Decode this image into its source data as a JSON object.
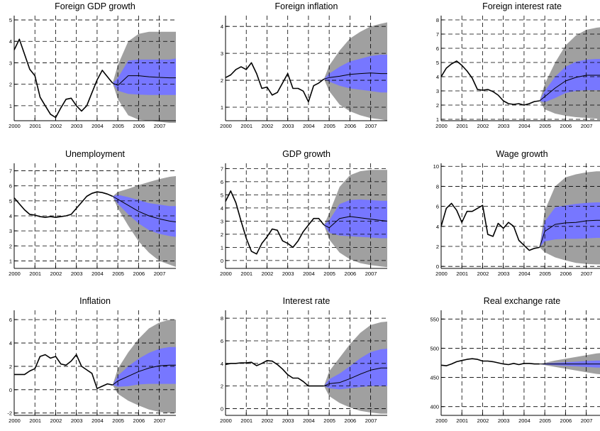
{
  "colors": {
    "outer_band": "#a0a0a0",
    "inner_band": "#7777ff",
    "line": "#000000",
    "grid": "#000000"
  },
  "chart_data": [
    {
      "type": "area",
      "title": "Foreign GDP growth",
      "grid": true,
      "x_ticks": [
        2000,
        2001,
        2002,
        2003,
        2004,
        2005,
        2006,
        2007
      ],
      "xlim": [
        2000,
        2007.8
      ],
      "y_ticks": [
        1,
        2,
        3,
        4,
        5
      ],
      "ylim": [
        0.3,
        5.2
      ],
      "history": {
        "x": [
          2000,
          2000.25,
          2000.5,
          2000.75,
          2001,
          2001.25,
          2001.5,
          2001.75,
          2002,
          2002.25,
          2002.5,
          2002.75,
          2003,
          2003.25,
          2003.5,
          2003.75,
          2004,
          2004.25,
          2004.5,
          2004.75
        ],
        "y": [
          3.6,
          4.1,
          3.4,
          2.7,
          2.4,
          1.4,
          1.0,
          0.6,
          0.45,
          0.9,
          1.3,
          1.35,
          1.0,
          0.75,
          1.0,
          1.6,
          2.2,
          2.65,
          2.35,
          2.05
        ]
      },
      "forecast_x": [
        2004.75,
        2005,
        2005.5,
        2006,
        2006.5,
        2007,
        2007.5,
        2007.8
      ],
      "forecast_mean": [
        2.05,
        1.95,
        2.4,
        2.4,
        2.35,
        2.32,
        2.3,
        2.3
      ],
      "band_inner": {
        "lower": [
          2.05,
          1.7,
          1.55,
          1.52,
          1.5,
          1.5,
          1.5,
          1.5
        ],
        "upper": [
          2.05,
          2.3,
          3.1,
          3.15,
          3.15,
          3.15,
          3.15,
          3.2
        ]
      },
      "band_outer": {
        "lower": [
          2.05,
          1.3,
          0.55,
          0.35,
          0.3,
          0.25,
          0.2,
          0.2
        ],
        "upper": [
          2.05,
          2.9,
          4.0,
          4.35,
          4.45,
          4.45,
          4.45,
          4.45
        ]
      }
    },
    {
      "type": "area",
      "title": "Foreign inflation",
      "grid": true,
      "x_ticks": [
        2000,
        2001,
        2002,
        2003,
        2004,
        2005,
        2006,
        2007
      ],
      "xlim": [
        2000,
        2007.8
      ],
      "y_ticks": [
        1,
        2,
        3,
        4
      ],
      "ylim": [
        0.5,
        4.4
      ],
      "history": {
        "x": [
          2000,
          2000.25,
          2000.5,
          2000.75,
          2001,
          2001.25,
          2001.5,
          2001.75,
          2002,
          2002.25,
          2002.5,
          2002.75,
          2003,
          2003.25,
          2003.5,
          2003.75,
          2004,
          2004.25,
          2004.5,
          2004.75
        ],
        "y": [
          2.1,
          2.2,
          2.4,
          2.5,
          2.4,
          2.65,
          2.25,
          1.7,
          1.75,
          1.45,
          1.55,
          1.9,
          2.25,
          1.7,
          1.7,
          1.6,
          1.2,
          1.8,
          1.9,
          2.05
        ]
      },
      "forecast_x": [
        2004.75,
        2005,
        2005.5,
        2006,
        2006.5,
        2007,
        2007.5,
        2007.8
      ],
      "forecast_mean": [
        2.05,
        2.1,
        2.15,
        2.22,
        2.25,
        2.27,
        2.25,
        2.25
      ],
      "band_inner": {
        "lower": [
          2.05,
          1.95,
          1.8,
          1.7,
          1.65,
          1.6,
          1.55,
          1.55
        ],
        "upper": [
          2.05,
          2.25,
          2.5,
          2.7,
          2.8,
          2.9,
          2.95,
          2.95
        ]
      },
      "band_outer": {
        "lower": [
          2.05,
          1.6,
          1.1,
          0.85,
          0.7,
          0.6,
          0.55,
          0.5
        ],
        "upper": [
          2.05,
          2.55,
          3.1,
          3.55,
          3.8,
          4.0,
          4.1,
          4.15
        ]
      }
    },
    {
      "type": "area",
      "title": "Foreign interest rate",
      "grid": true,
      "x_ticks": [
        2000,
        2001,
        2002,
        2003,
        2004,
        2005,
        2006,
        2007
      ],
      "xlim": [
        2000,
        2007.8
      ],
      "y_ticks": [
        1,
        2,
        3,
        4,
        5,
        6,
        7,
        8
      ],
      "ylim": [
        0.9,
        8.3
      ],
      "history": {
        "x": [
          2000,
          2000.25,
          2000.5,
          2000.75,
          2001,
          2001.25,
          2001.5,
          2001.75,
          2002,
          2002.25,
          2002.5,
          2002.75,
          2003,
          2003.25,
          2003.5,
          2003.75,
          2004,
          2004.25,
          2004.5,
          2004.75
        ],
        "y": [
          4.0,
          4.6,
          4.9,
          5.1,
          4.8,
          4.4,
          3.9,
          3.1,
          3.05,
          3.1,
          2.95,
          2.7,
          2.3,
          2.1,
          2.05,
          2.1,
          2.0,
          2.1,
          2.25,
          2.3
        ]
      },
      "forecast_x": [
        2004.75,
        2005,
        2005.5,
        2006,
        2006.5,
        2007,
        2007.5,
        2007.8
      ],
      "forecast_mean": [
        2.3,
        2.6,
        3.2,
        3.7,
        3.95,
        4.1,
        4.1,
        4.1
      ],
      "band_inner": {
        "lower": [
          2.3,
          2.2,
          2.5,
          2.85,
          3.0,
          3.05,
          3.05,
          3.05
        ],
        "upper": [
          2.3,
          3.0,
          4.0,
          4.7,
          5.05,
          5.2,
          5.25,
          5.25
        ]
      },
      "band_outer": {
        "lower": [
          2.3,
          1.7,
          1.4,
          1.25,
          1.15,
          1.1,
          1.05,
          1.05
        ],
        "upper": [
          2.3,
          3.5,
          5.0,
          6.2,
          6.9,
          7.3,
          7.45,
          7.5
        ]
      }
    },
    {
      "type": "area",
      "title": "Unemployment",
      "grid": true,
      "x_ticks": [
        2000,
        2001,
        2002,
        2003,
        2004,
        2005,
        2006,
        2007
      ],
      "xlim": [
        2000,
        2007.8
      ],
      "y_ticks": [
        1,
        2,
        3,
        4,
        5,
        6,
        7
      ],
      "ylim": [
        0.5,
        7.5
      ],
      "history": {
        "x": [
          2000,
          2000.25,
          2000.5,
          2000.75,
          2001,
          2001.25,
          2001.5,
          2001.75,
          2002,
          2002.25,
          2002.5,
          2002.75,
          2003,
          2003.25,
          2003.5,
          2003.75,
          2004,
          2004.25,
          2004.5,
          2004.75
        ],
        "y": [
          5.2,
          4.8,
          4.4,
          4.1,
          4.05,
          3.95,
          3.9,
          3.95,
          3.9,
          3.95,
          4.0,
          4.1,
          4.5,
          4.9,
          5.3,
          5.5,
          5.6,
          5.55,
          5.45,
          5.3
        ]
      },
      "forecast_x": [
        2004.75,
        2005,
        2005.5,
        2006,
        2006.5,
        2007,
        2007.5,
        2007.8
      ],
      "forecast_mean": [
        5.3,
        5.1,
        4.7,
        4.3,
        4.0,
        3.8,
        3.65,
        3.6
      ],
      "band_inner": {
        "lower": [
          5.3,
          4.8,
          4.1,
          3.5,
          3.05,
          2.8,
          2.65,
          2.6
        ],
        "upper": [
          5.3,
          5.4,
          5.25,
          5.05,
          4.85,
          4.75,
          4.65,
          4.65
        ]
      },
      "band_outer": {
        "lower": [
          5.3,
          4.5,
          3.35,
          2.3,
          1.55,
          1.0,
          0.75,
          0.6
        ],
        "upper": [
          5.3,
          5.6,
          5.8,
          6.05,
          6.25,
          6.45,
          6.6,
          6.65
        ]
      }
    },
    {
      "type": "area",
      "title": "GDP growth",
      "grid": true,
      "x_ticks": [
        2000,
        2001,
        2002,
        2003,
        2004,
        2005,
        2006,
        2007
      ],
      "xlim": [
        2000,
        2007.8
      ],
      "y_ticks": [
        0,
        1,
        2,
        3,
        4,
        5,
        6,
        7
      ],
      "ylim": [
        -0.6,
        7.4
      ],
      "history": {
        "x": [
          2000,
          2000.25,
          2000.5,
          2000.75,
          2001,
          2001.25,
          2001.5,
          2001.75,
          2002,
          2002.25,
          2002.5,
          2002.75,
          2003,
          2003.25,
          2003.5,
          2003.75,
          2004,
          2004.25,
          2004.5,
          2004.75
        ],
        "y": [
          4.5,
          5.3,
          4.4,
          3.0,
          1.7,
          0.7,
          0.5,
          1.3,
          1.8,
          2.4,
          2.3,
          1.5,
          1.3,
          1.0,
          1.5,
          2.2,
          2.7,
          3.2,
          3.2,
          2.7
        ]
      },
      "forecast_x": [
        2004.75,
        2005,
        2005.5,
        2006,
        2006.5,
        2007,
        2007.5,
        2007.8
      ],
      "forecast_mean": [
        2.7,
        2.5,
        3.2,
        3.35,
        3.25,
        3.15,
        3.05,
        3.0
      ],
      "band_inner": {
        "lower": [
          2.7,
          2.1,
          1.9,
          1.85,
          1.8,
          1.75,
          1.7,
          1.7
        ],
        "upper": [
          2.7,
          3.05,
          4.3,
          4.6,
          4.65,
          4.6,
          4.55,
          4.55
        ]
      },
      "band_outer": {
        "lower": [
          2.7,
          1.6,
          0.6,
          0.1,
          -0.2,
          -0.35,
          -0.45,
          -0.5
        ],
        "upper": [
          2.7,
          3.6,
          5.6,
          6.5,
          6.8,
          6.9,
          6.9,
          6.9
        ]
      }
    },
    {
      "type": "area",
      "title": "Wage growth",
      "grid": true,
      "x_ticks": [
        2000,
        2001,
        2002,
        2003,
        2004,
        2005,
        2006,
        2007
      ],
      "xlim": [
        2000,
        2007.8
      ],
      "y_ticks": [
        0,
        2,
        4,
        6,
        8,
        10
      ],
      "ylim": [
        -0.2,
        10.3
      ],
      "history": {
        "x": [
          2000,
          2000.25,
          2000.5,
          2000.75,
          2001,
          2001.25,
          2001.5,
          2001.75,
          2002,
          2002.25,
          2002.5,
          2002.75,
          2003,
          2003.25,
          2003.5,
          2003.75,
          2004,
          2004.25,
          2004.5,
          2004.75
        ],
        "y": [
          4.0,
          5.8,
          6.3,
          5.6,
          4.4,
          5.5,
          5.5,
          5.8,
          6.1,
          3.2,
          3.0,
          4.3,
          3.8,
          4.4,
          4.0,
          2.6,
          2.1,
          1.6,
          1.8,
          1.9
        ]
      },
      "forecast_x": [
        2004.75,
        2005,
        2005.5,
        2006,
        2006.5,
        2007,
        2007.5,
        2007.8
      ],
      "forecast_mean": [
        1.9,
        3.5,
        4.2,
        4.35,
        4.4,
        4.55,
        4.6,
        4.6
      ],
      "band_inner": {
        "lower": [
          1.9,
          2.5,
          2.7,
          2.75,
          2.75,
          2.8,
          2.85,
          2.85
        ],
        "upper": [
          1.9,
          4.5,
          5.9,
          6.1,
          6.25,
          6.35,
          6.4,
          6.4
        ]
      },
      "band_outer": {
        "lower": [
          1.9,
          1.4,
          0.9,
          0.6,
          0.35,
          0.25,
          0.2,
          0.2
        ],
        "upper": [
          1.9,
          5.6,
          8.0,
          8.9,
          9.2,
          9.4,
          9.5,
          9.5
        ]
      }
    },
    {
      "type": "area",
      "title": "Inflation",
      "grid": true,
      "x_ticks": [
        2000,
        2001,
        2002,
        2003,
        2004,
        2005,
        2006,
        2007
      ],
      "xlim": [
        2000,
        2007.8
      ],
      "y_ticks": [
        -2,
        0,
        2,
        4,
        6
      ],
      "ylim": [
        -2.2,
        6.8
      ],
      "history": {
        "x": [
          2000,
          2000.25,
          2000.5,
          2000.75,
          2001,
          2001.25,
          2001.5,
          2001.75,
          2002,
          2002.25,
          2002.5,
          2002.75,
          2003,
          2003.25,
          2003.5,
          2003.75,
          2004,
          2004.25,
          2004.5,
          2004.75
        ],
        "y": [
          1.3,
          1.3,
          1.3,
          1.6,
          1.8,
          2.85,
          3.0,
          2.7,
          2.85,
          2.2,
          2.1,
          2.45,
          3.0,
          2.0,
          1.7,
          1.4,
          0.1,
          0.3,
          0.5,
          0.4
        ]
      },
      "forecast_x": [
        2004.75,
        2005,
        2005.5,
        2006,
        2006.5,
        2007,
        2007.5,
        2007.8
      ],
      "forecast_mean": [
        0.4,
        0.75,
        1.15,
        1.55,
        1.85,
        2.05,
        2.1,
        2.1
      ],
      "band_inner": {
        "lower": [
          0.4,
          0.25,
          0.3,
          0.45,
          0.5,
          0.5,
          0.5,
          0.5
        ],
        "upper": [
          0.4,
          1.2,
          2.0,
          2.65,
          3.15,
          3.5,
          3.65,
          3.65
        ]
      },
      "band_outer": {
        "lower": [
          0.4,
          -0.35,
          -0.95,
          -1.35,
          -1.7,
          -1.9,
          -2.0,
          -2.0
        ],
        "upper": [
          0.4,
          1.8,
          3.2,
          4.35,
          5.25,
          5.75,
          6.0,
          6.0
        ]
      }
    },
    {
      "type": "area",
      "title": "Interest rate",
      "grid": true,
      "x_ticks": [
        2000,
        2001,
        2002,
        2003,
        2004,
        2005,
        2006,
        2007
      ],
      "xlim": [
        2000,
        2007.8
      ],
      "y_ticks": [
        0,
        2,
        4,
        6,
        8
      ],
      "ylim": [
        -0.6,
        8.7
      ],
      "history": {
        "x": [
          2000,
          2000.25,
          2000.5,
          2000.75,
          2001,
          2001.25,
          2001.5,
          2001.75,
          2002,
          2002.25,
          2002.5,
          2002.75,
          2003,
          2003.25,
          2003.5,
          2003.75,
          2004,
          2004.25,
          2004.5,
          2004.75
        ],
        "y": [
          3.9,
          4.0,
          4.0,
          4.05,
          4.05,
          4.1,
          3.8,
          4.0,
          4.25,
          4.2,
          3.9,
          3.5,
          3.0,
          2.7,
          2.7,
          2.4,
          2.0,
          2.0,
          2.0,
          2.0
        ]
      },
      "forecast_x": [
        2004.75,
        2005,
        2005.5,
        2006,
        2006.5,
        2007,
        2007.5,
        2007.8
      ],
      "forecast_mean": [
        2.0,
        2.2,
        2.3,
        2.65,
        3.05,
        3.4,
        3.6,
        3.6
      ],
      "band_inner": {
        "lower": [
          2.0,
          1.8,
          1.7,
          1.8,
          1.9,
          2.0,
          2.0,
          2.0
        ],
        "upper": [
          2.0,
          2.6,
          3.1,
          3.75,
          4.45,
          5.0,
          5.25,
          5.3
        ]
      },
      "band_outer": {
        "lower": [
          2.0,
          1.1,
          0.5,
          0.1,
          -0.2,
          -0.35,
          -0.45,
          -0.45
        ],
        "upper": [
          2.0,
          3.3,
          4.5,
          5.7,
          6.7,
          7.4,
          7.65,
          7.7
        ]
      }
    },
    {
      "type": "area",
      "title": "Real exchange rate",
      "grid": true,
      "x_ticks": [
        2000,
        2001,
        2002,
        2003,
        2004,
        2005,
        2006,
        2007
      ],
      "xlim": [
        2000,
        2007.8
      ],
      "y_ticks": [
        400,
        450,
        500,
        550
      ],
      "ylim": [
        385,
        565
      ],
      "history": {
        "x": [
          2000,
          2000.25,
          2000.5,
          2000.75,
          2001,
          2001.25,
          2001.5,
          2001.75,
          2002,
          2002.25,
          2002.5,
          2002.75,
          2003,
          2003.25,
          2003.5,
          2003.75,
          2004,
          2004.25,
          2004.5,
          2004.75
        ],
        "y": [
          471,
          470,
          473,
          477,
          479,
          481,
          482,
          481,
          478,
          478,
          477,
          475,
          473,
          472,
          474,
          472,
          474,
          474,
          473,
          473
        ]
      },
      "forecast_x": [
        2004.75,
        2005,
        2005.5,
        2006,
        2006.5,
        2007,
        2007.5,
        2007.8
      ],
      "forecast_mean": [
        473,
        473,
        473,
        473,
        473,
        473,
        473,
        473
      ],
      "band_inner": {
        "lower": [
          473,
          472,
          471,
          470,
          469,
          468,
          467,
          467
        ],
        "upper": [
          473,
          474,
          475,
          476,
          477,
          478,
          479,
          479
        ]
      },
      "band_outer": {
        "lower": [
          473,
          471,
          468,
          465,
          462,
          459,
          456,
          455
        ],
        "upper": [
          473,
          475,
          479,
          482,
          485,
          488,
          491,
          492
        ]
      }
    }
  ]
}
